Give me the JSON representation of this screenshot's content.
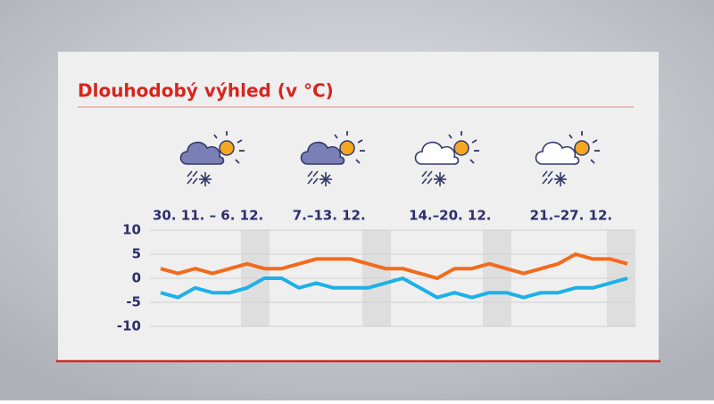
{
  "chart_data": {
    "type": "line",
    "title": "Dlouhodobý výhled (v °C)",
    "periods": [
      "30. 11. – 6. 12.",
      "7.–13. 12.",
      "14.–20. 12.",
      "21.–27. 12."
    ],
    "categories": [
      null,
      null,
      null,
      null,
      null,
      null,
      null,
      null,
      null,
      null,
      null,
      null,
      null,
      null,
      null,
      null,
      null,
      null,
      null,
      null,
      null,
      null,
      null,
      null,
      null,
      null,
      null,
      null
    ],
    "series": [
      {
        "color": "#f26b1d",
        "values": [
          2,
          1,
          2,
          1,
          2,
          3,
          2,
          2,
          3,
          4,
          4,
          4,
          3,
          2,
          2,
          1,
          0,
          2,
          2,
          3,
          2,
          1,
          2,
          3,
          5,
          4,
          4,
          3
        ]
      },
      {
        "color": "#1eb0e8",
        "values": [
          -3,
          -4,
          -2,
          -3,
          -3,
          -2,
          0,
          0,
          -2,
          -1,
          -2,
          -2,
          -2,
          -1,
          0,
          -2,
          -4,
          -3,
          -4,
          -3,
          -3,
          -4,
          -3,
          -3,
          -2,
          -2,
          -1,
          0
        ]
      }
    ],
    "ylim": [
      -10,
      10
    ],
    "yticks": [
      10,
      5,
      0,
      -5,
      -10
    ],
    "grid": true
  }
}
